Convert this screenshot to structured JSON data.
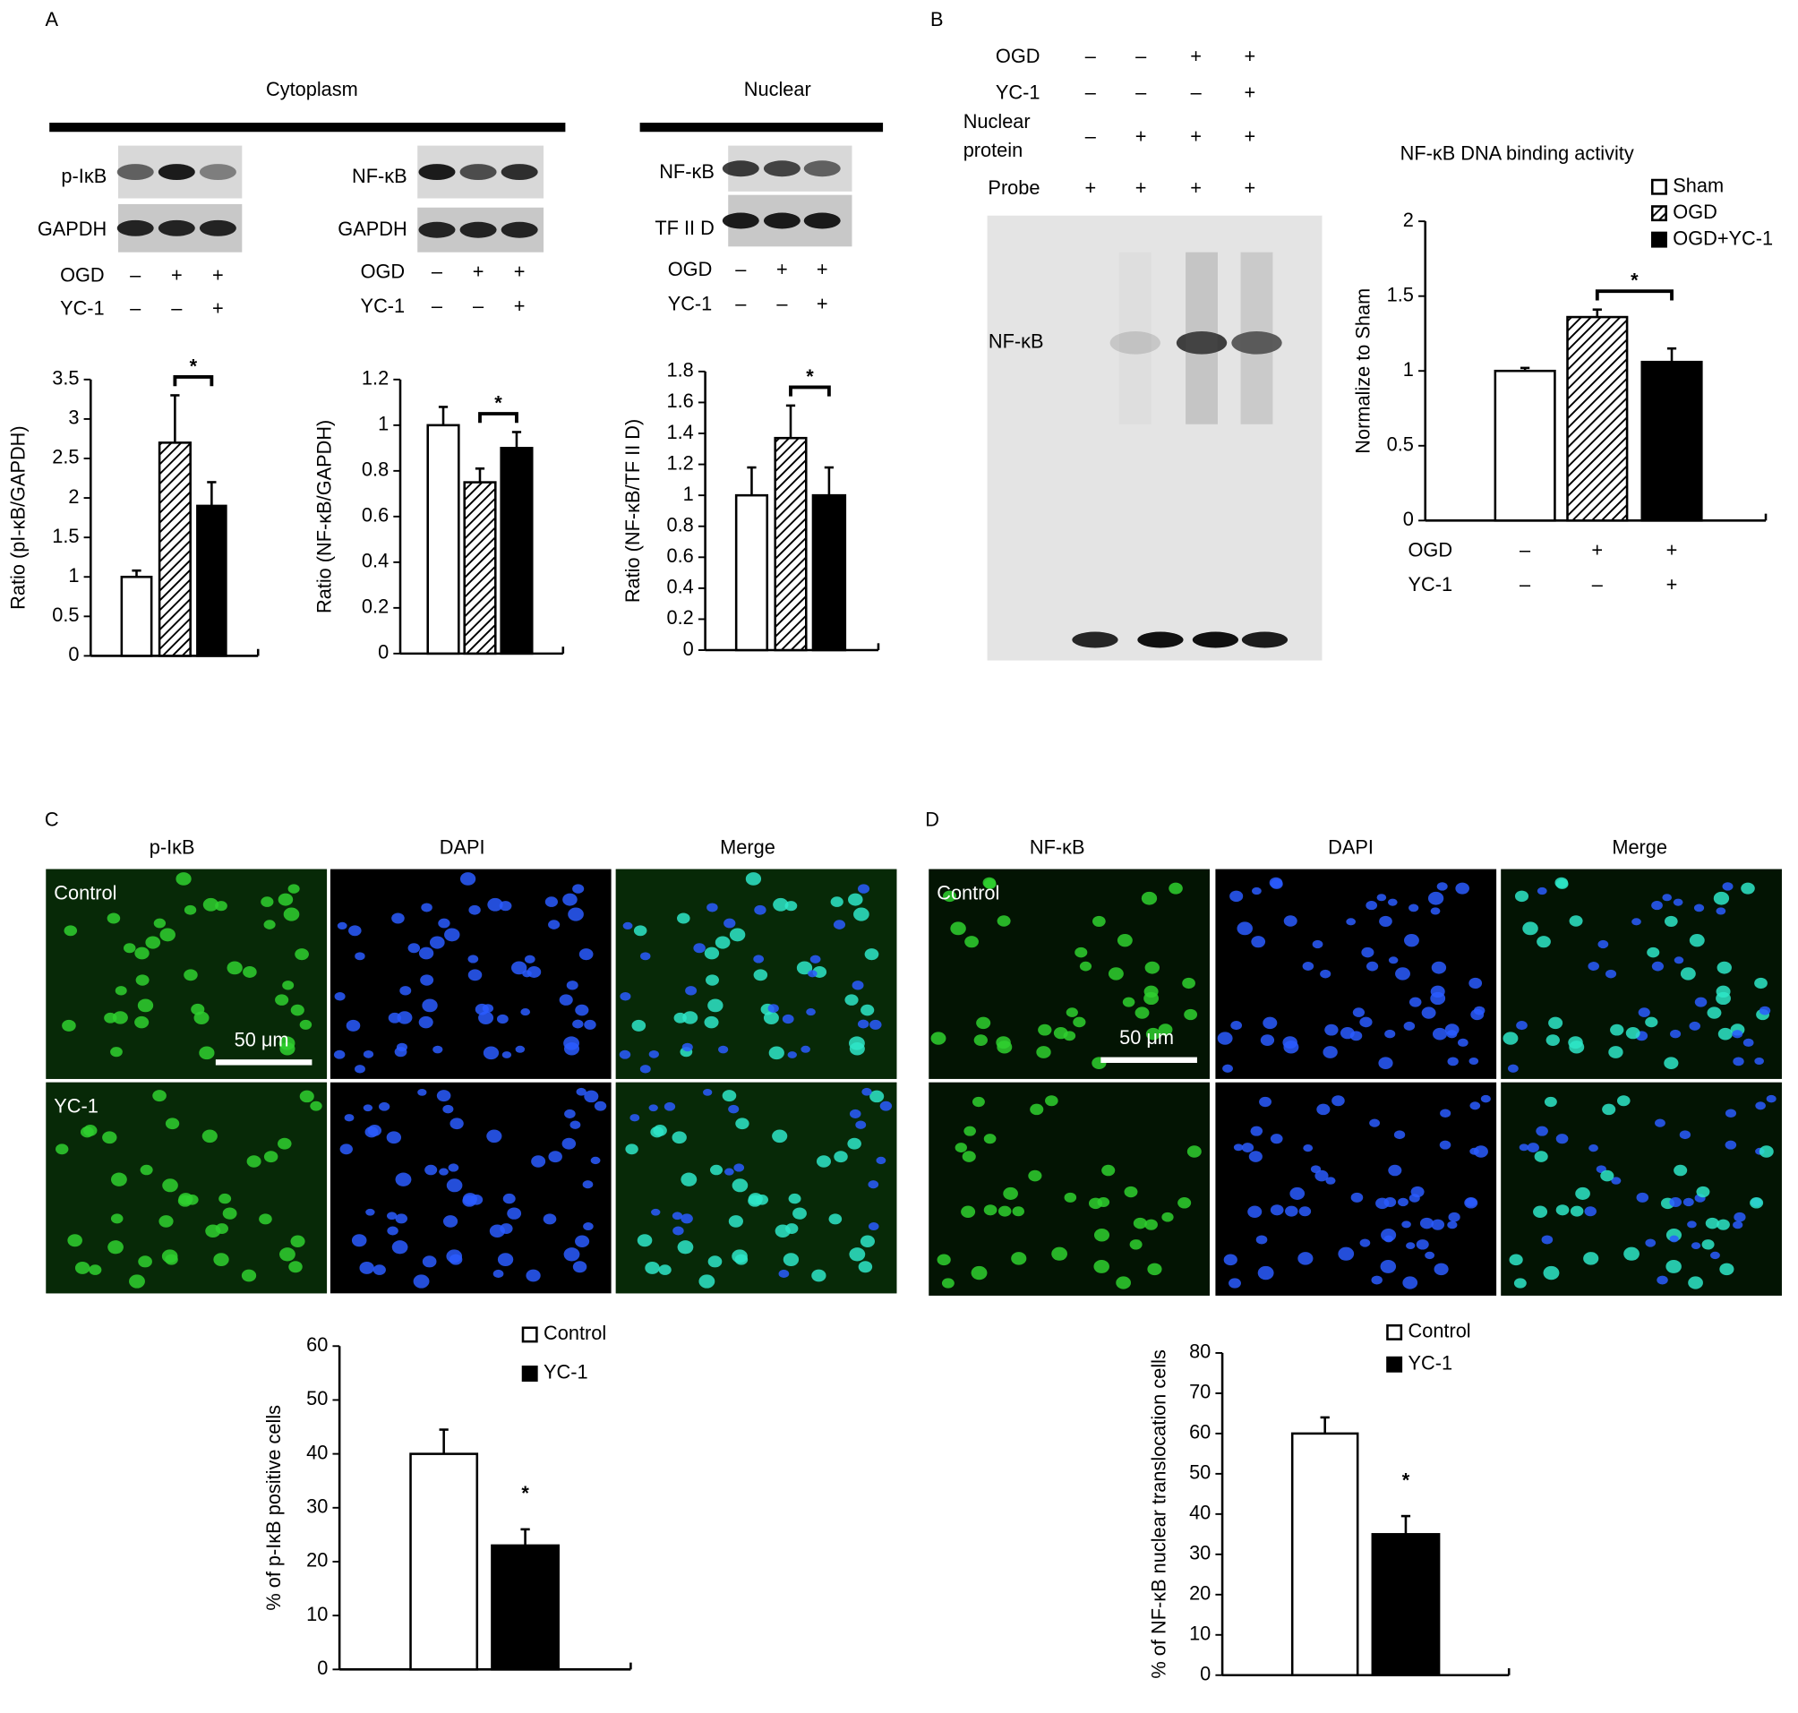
{
  "figure": {
    "A": {
      "letter": "A",
      "cytoplasm": "Cytoplasm",
      "nuclear": "Nuclear",
      "blots": [
        {
          "labels": [
            "p-IκB",
            "GAPDH"
          ],
          "conditions": [
            {
              "label": "OGD",
              "signs": [
                "–",
                "+",
                "+"
              ]
            },
            {
              "label": "YC-1",
              "signs": [
                "–",
                "–",
                "+"
              ]
            }
          ]
        },
        {
          "labels": [
            "NF-κB",
            "GAPDH"
          ],
          "conditions": [
            {
              "label": "OGD",
              "signs": [
                "–",
                "+",
                "+"
              ]
            },
            {
              "label": "YC-1",
              "signs": [
                "–",
                "–",
                "+"
              ]
            }
          ]
        },
        {
          "labels": [
            "NF-κB",
            "TF II D"
          ],
          "conditions": [
            {
              "label": "OGD",
              "signs": [
                "–",
                "+",
                "+"
              ]
            },
            {
              "label": "YC-1",
              "signs": [
                "–",
                "–",
                "+"
              ]
            }
          ]
        }
      ]
    },
    "B": {
      "letter": "B",
      "gel_label": "NF-κB",
      "rows": [
        {
          "label": [
            "OGD"
          ],
          "signs": [
            "–",
            "–",
            "+",
            "+"
          ]
        },
        {
          "label": [
            "YC-1"
          ],
          "signs": [
            "–",
            "–",
            "–",
            "+"
          ]
        },
        {
          "label": [
            "Nuclear",
            "protein"
          ],
          "signs": [
            "–",
            "+",
            "+",
            "+"
          ]
        },
        {
          "label": [
            "Probe"
          ],
          "signs": [
            "+",
            "+",
            "+",
            "+"
          ]
        }
      ]
    },
    "C": {
      "letter": "C",
      "columns": [
        "p-IκB",
        "DAPI",
        "Merge"
      ],
      "rows": [
        "Control",
        "YC-1"
      ],
      "scale_bar": "50 μm"
    },
    "D": {
      "letter": "D",
      "columns": [
        "NF-κB",
        "DAPI",
        "Merge"
      ],
      "rows": [
        "Control"
      ],
      "scale_bar": "50 μm"
    }
  },
  "chart_data": [
    {
      "type": "bar",
      "ylabel": "Ratio (pI-κB/GAPDH)",
      "ylim": [
        0,
        3.5
      ],
      "yticks": [
        0,
        0.5,
        1,
        1.5,
        2,
        2.5,
        3,
        3.5
      ],
      "values": [
        1,
        2.7,
        1.9
      ],
      "errors": [
        0.08,
        0.6,
        0.3
      ],
      "fills": [
        "#ffffff",
        "hatch",
        "#000000"
      ],
      "significance": "*"
    },
    {
      "type": "bar",
      "ylabel": "Ratio (NF-κB/GAPDH)",
      "ylim": [
        0,
        1.2
      ],
      "yticks": [
        0,
        0.2,
        0.4,
        0.6,
        0.8,
        1,
        1.2
      ],
      "values": [
        1,
        0.75,
        0.9
      ],
      "errors": [
        0.08,
        0.06,
        0.07
      ],
      "fills": [
        "#ffffff",
        "hatch",
        "#000000"
      ],
      "significance": "*"
    },
    {
      "type": "bar",
      "ylabel": "Ratio (NF-κB/TF II D)",
      "ylim": [
        0,
        1.8
      ],
      "yticks": [
        0,
        0.2,
        0.4,
        0.6,
        0.8,
        1,
        1.2,
        1.4,
        1.6,
        1.8
      ],
      "values": [
        1,
        1.37,
        1
      ],
      "errors": [
        0.18,
        0.21,
        0.18
      ],
      "fills": [
        "#ffffff",
        "hatch",
        "#000000"
      ],
      "significance": "*"
    },
    {
      "type": "bar",
      "title": "NF-κB DNA binding activity",
      "ylabel": "Normalize to Sham",
      "ylim": [
        0,
        2
      ],
      "yticks": [
        0,
        0.5,
        1,
        1.5,
        2
      ],
      "series": [
        {
          "name": "Sham",
          "fill": "#ffffff",
          "values": [
            1
          ],
          "errors": [
            0.02
          ]
        },
        {
          "name": "OGD",
          "fill": "hatch",
          "values": [
            1.36
          ],
          "errors": [
            0.05
          ]
        },
        {
          "name": "OGD+YC-1",
          "fill": "#000000",
          "values": [
            1.06
          ],
          "errors": [
            0.09
          ]
        }
      ],
      "conditions": [
        {
          "label": "OGD",
          "signs": [
            "–",
            "+",
            "+"
          ]
        },
        {
          "label": "YC-1",
          "signs": [
            "–",
            "–",
            "+"
          ]
        }
      ],
      "significance": "*"
    },
    {
      "type": "bar",
      "ylabel": "% of p-IκB positive cells",
      "ylim": [
        0,
        60
      ],
      "yticks": [
        0,
        10,
        20,
        30,
        40,
        50,
        60
      ],
      "series": [
        {
          "name": "Control",
          "fill": "#ffffff",
          "values": [
            40
          ],
          "errors": [
            4.5
          ]
        },
        {
          "name": "YC-1",
          "fill": "#000000",
          "values": [
            23
          ],
          "errors": [
            3
          ]
        }
      ],
      "significance": "*"
    },
    {
      "type": "bar",
      "ylabel": "% of NF-κB nuclear  translocation cells",
      "ylim": [
        0,
        80
      ],
      "yticks": [
        0,
        10,
        20,
        30,
        40,
        50,
        60,
        70,
        80
      ],
      "series": [
        {
          "name": "Control",
          "fill": "#ffffff",
          "values": [
            60
          ],
          "errors": [
            4
          ]
        },
        {
          "name": "YC-1",
          "fill": "#000000",
          "values": [
            35
          ],
          "errors": [
            4.5
          ]
        }
      ],
      "significance": "*"
    }
  ]
}
